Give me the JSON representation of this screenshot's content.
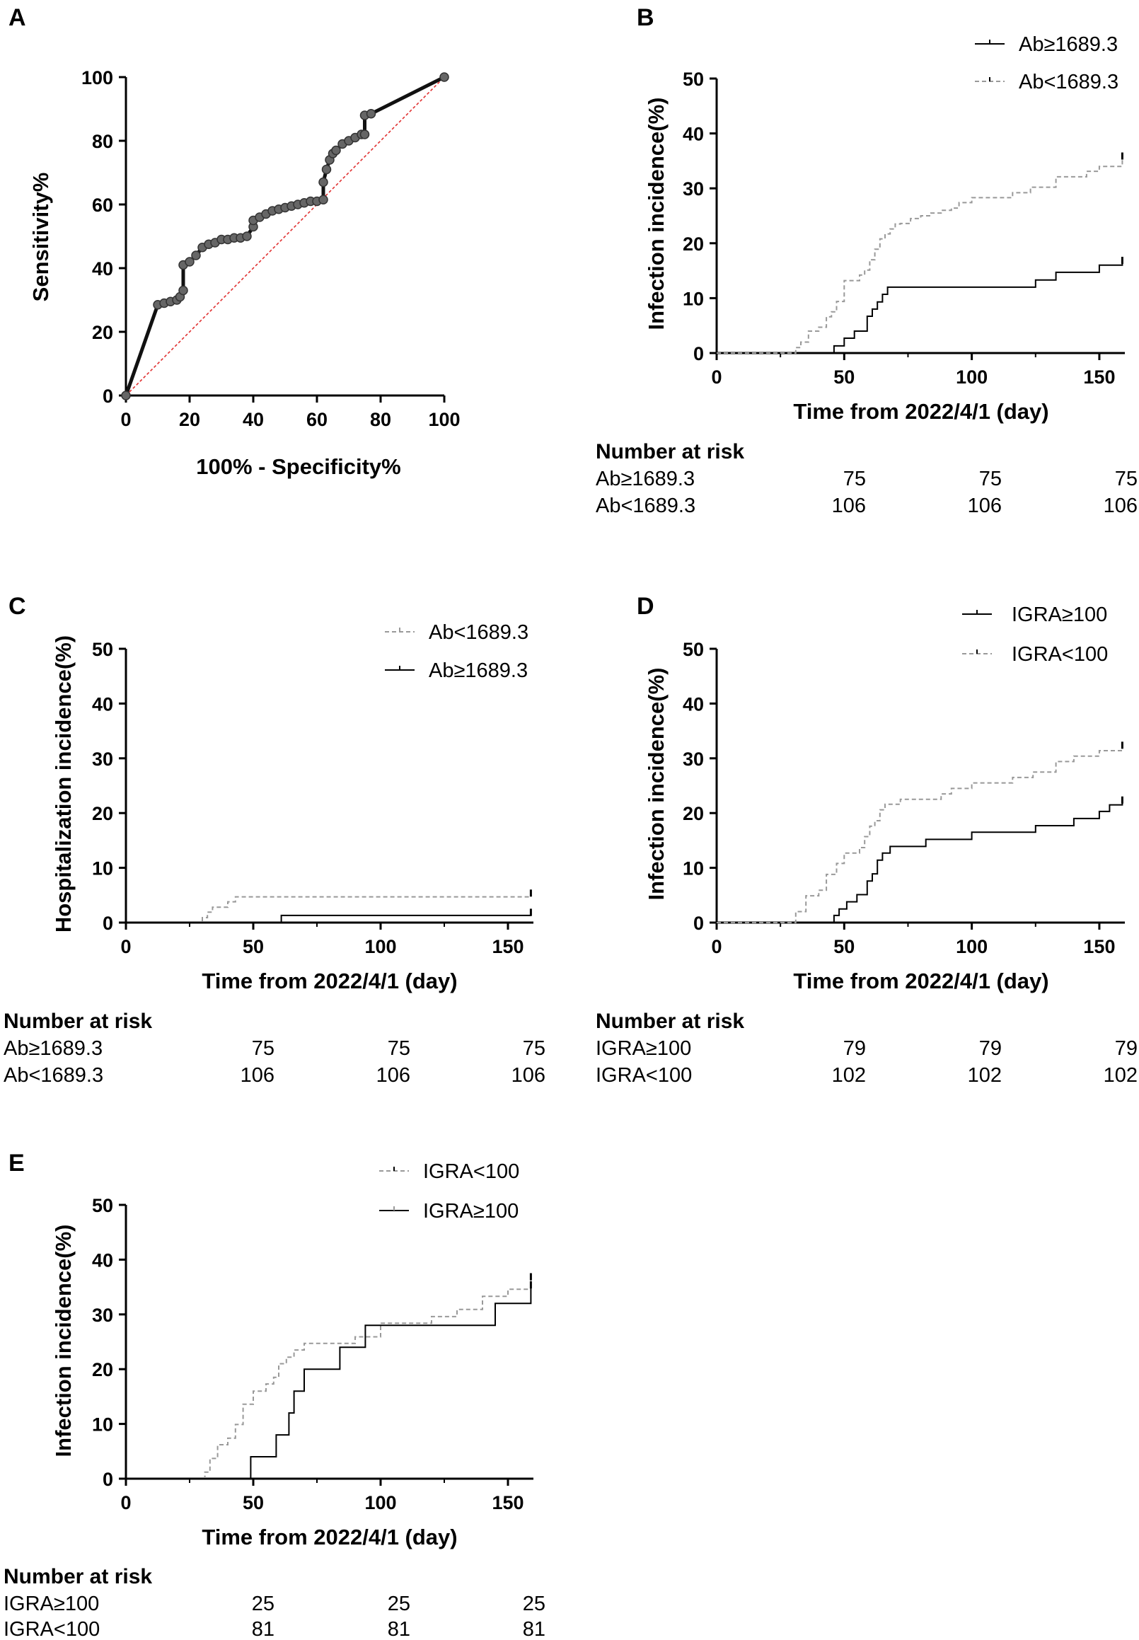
{
  "chart_data": [
    {
      "id": "A",
      "panel_label": "A",
      "type": "line",
      "title": "",
      "xlabel": "100% - Specificity%",
      "ylabel": "Sensitivity%",
      "xlim": [
        0,
        100
      ],
      "ylim": [
        0,
        100
      ],
      "xticks": [
        "0",
        "20",
        "40",
        "60",
        "80",
        "100"
      ],
      "yticks": [
        "0",
        "20",
        "40",
        "60",
        "80",
        "100"
      ],
      "series": [
        {
          "name": "ROC curve",
          "color": "#000000",
          "x": [
            0,
            10,
            12,
            14,
            16,
            17,
            18,
            18,
            20,
            22,
            24,
            26,
            28,
            30,
            32,
            34,
            36,
            38,
            40,
            40,
            42,
            44,
            46,
            48,
            50,
            52,
            54,
            56,
            58,
            60,
            62,
            62,
            63,
            64,
            65,
            66,
            68,
            70,
            72,
            74,
            75,
            75,
            77,
            100
          ],
          "y": [
            0,
            28.5,
            29,
            29.5,
            30,
            31,
            33,
            41,
            42,
            44,
            46.5,
            47.5,
            48,
            49,
            49,
            49.5,
            49.5,
            50,
            53,
            55,
            56,
            57,
            58,
            58.5,
            59,
            59.5,
            60,
            60.5,
            61,
            61,
            61.5,
            67,
            71,
            74,
            76,
            77,
            79,
            80,
            81,
            82,
            82,
            88,
            88.5,
            100
          ]
        },
        {
          "name": "Reference line",
          "color": "#e03030",
          "x": [
            0,
            100
          ],
          "y": [
            0,
            100
          ]
        }
      ]
    },
    {
      "id": "B",
      "panel_label": "B",
      "type": "line",
      "title": "",
      "xlabel": "Time from 2022/4/1 (day)",
      "ylabel": "Infection incidence(%)",
      "xlim": [
        0,
        160
      ],
      "ylim": [
        0,
        50
      ],
      "xticks": [
        "0",
        "50",
        "100",
        "150"
      ],
      "yticks": [
        "0",
        "10",
        "20",
        "30",
        "40",
        "50"
      ],
      "legend": [
        {
          "label": "Ab≥1689.3",
          "style": "solid"
        },
        {
          "label": "Ab<1689.3",
          "style": "dashed"
        }
      ],
      "series": [
        {
          "name": "Ab≥1689.3",
          "style": "solid",
          "x": [
            0,
            44,
            46,
            50,
            54,
            59,
            61,
            63,
            65,
            67,
            100,
            125,
            133,
            150,
            159
          ],
          "y": [
            0,
            0,
            1.3,
            2.7,
            4,
            6.7,
            8,
            9.3,
            10.7,
            12,
            12,
            13.3,
            14.7,
            16,
            16.5
          ]
        },
        {
          "name": "Ab<1689.3",
          "style": "dashed",
          "x": [
            0,
            29,
            31,
            33,
            36,
            40,
            43,
            45,
            47,
            50,
            56,
            58,
            60,
            62,
            64,
            66,
            68,
            70,
            72,
            76,
            80,
            84,
            88,
            92,
            95,
            100,
            110,
            116,
            123,
            133,
            145,
            150,
            159
          ],
          "y": [
            0,
            0,
            1,
            2,
            4,
            4.7,
            6.6,
            7.5,
            9.4,
            13.2,
            14.2,
            15.1,
            17,
            18.9,
            20.8,
            21.7,
            22.6,
            23.5,
            23.6,
            24.5,
            25,
            25.5,
            26,
            26.4,
            27.4,
            28.3,
            28.3,
            29.2,
            30.2,
            32.1,
            33.1,
            34,
            35.5
          ]
        }
      ],
      "risk_table": {
        "header": "Number at risk",
        "rows": [
          {
            "label": "Ab≥1689.3",
            "values": [
              "75",
              "75",
              "75"
            ]
          },
          {
            "label": "Ab<1689.3",
            "values": [
              "106",
              "106",
              "106"
            ]
          }
        ]
      }
    },
    {
      "id": "C",
      "panel_label": "C",
      "type": "line",
      "title": "",
      "xlabel": "Time from 2022/4/1 (day)",
      "ylabel": "Hospitalization incidence(%)",
      "xlim": [
        0,
        160
      ],
      "ylim": [
        0,
        50
      ],
      "xticks": [
        "0",
        "50",
        "100",
        "150"
      ],
      "yticks": [
        "0",
        "10",
        "20",
        "30",
        "40",
        "50"
      ],
      "legend": [
        {
          "label": "Ab<1689.3",
          "style": "dashed"
        },
        {
          "label": "Ab≥1689.3",
          "style": "solid"
        }
      ],
      "series": [
        {
          "name": "Ab<1689.3",
          "style": "dashed",
          "x": [
            0,
            28,
            30,
            32,
            34,
            36,
            40,
            43,
            159
          ],
          "y": [
            0,
            0,
            0.9,
            1.9,
            2.8,
            2.8,
            3.8,
            4.7,
            5
          ]
        },
        {
          "name": "Ab≥1689.3",
          "style": "solid",
          "x": [
            0,
            61,
            159
          ],
          "y": [
            0,
            1.3,
            1.5
          ]
        }
      ],
      "risk_table": {
        "header": "Number at risk",
        "rows": [
          {
            "label": "Ab≥1689.3",
            "values": [
              "75",
              "75",
              "75"
            ]
          },
          {
            "label": "Ab<1689.3",
            "values": [
              "106",
              "106",
              "106"
            ]
          }
        ]
      }
    },
    {
      "id": "D",
      "panel_label": "D",
      "type": "line",
      "title": "",
      "xlabel": "Time from 2022/4/1 (day)",
      "ylabel": "Infection incidence(%)",
      "xlim": [
        0,
        160
      ],
      "ylim": [
        0,
        50
      ],
      "xticks": [
        "0",
        "50",
        "100",
        "150"
      ],
      "yticks": [
        "0",
        "10",
        "20",
        "30",
        "40",
        "50"
      ],
      "legend": [
        {
          "label": "IGRA≥100",
          "style": "solid"
        },
        {
          "label": "IGRA<100",
          "style": "dashed"
        }
      ],
      "series": [
        {
          "name": "IGRA≥100",
          "style": "solid",
          "x": [
            0,
            44,
            46,
            48,
            51,
            55,
            59,
            61,
            63,
            65,
            68,
            70,
            82,
            100,
            125,
            133,
            140,
            145,
            150,
            154,
            159
          ],
          "y": [
            0,
            0,
            1.3,
            2.5,
            3.8,
            5.1,
            7.6,
            8.9,
            11.4,
            12.7,
            13.9,
            13.9,
            15.2,
            16.5,
            17.7,
            17.7,
            19,
            19,
            20.3,
            21.5,
            22
          ]
        },
        {
          "name": "IGRA<100",
          "style": "dashed",
          "x": [
            0,
            29,
            31,
            35,
            40,
            43,
            47,
            50,
            56,
            58,
            60,
            62,
            64,
            66,
            68,
            72,
            80,
            88,
            92,
            100,
            110,
            116,
            124,
            133,
            140,
            150,
            159
          ],
          "y": [
            0,
            0,
            2,
            4.9,
            5.9,
            8.8,
            10.8,
            12.7,
            13.7,
            15.7,
            17.6,
            18.6,
            20.6,
            21.6,
            21.6,
            22.5,
            22.5,
            23.5,
            24.5,
            25.5,
            25.5,
            26.5,
            27.5,
            29.4,
            30.4,
            31.4,
            32
          ]
        }
      ],
      "risk_table": {
        "header": "Number at risk",
        "rows": [
          {
            "label": "IGRA≥100",
            "values": [
              "79",
              "79",
              "79"
            ]
          },
          {
            "label": "IGRA<100",
            "values": [
              "102",
              "102",
              "102"
            ]
          }
        ]
      }
    },
    {
      "id": "E",
      "panel_label": "E",
      "type": "line",
      "title": "",
      "xlabel": "Time from 2022/4/1 (day)",
      "ylabel": "Infection incidence(%)",
      "xlim": [
        0,
        160
      ],
      "ylim": [
        0,
        50
      ],
      "xticks": [
        "0",
        "50",
        "100",
        "150"
      ],
      "yticks": [
        "0",
        "10",
        "20",
        "30",
        "40",
        "50"
      ],
      "legend": [
        {
          "label": "IGRA<100",
          "style": "dashed"
        },
        {
          "label": "IGRA≥100",
          "style": "solid"
        }
      ],
      "series": [
        {
          "name": "IGRA<100",
          "style": "dashed",
          "x": [
            0,
            29,
            31,
            33,
            36,
            40,
            43,
            46,
            50,
            55,
            58,
            60,
            63,
            66,
            68,
            70,
            80,
            90,
            100,
            110,
            120,
            130,
            140,
            150,
            159
          ],
          "y": [
            0,
            0,
            1.2,
            3.7,
            6.2,
            7.4,
            9.9,
            13.6,
            16,
            17.3,
            18.5,
            21,
            22.2,
            23.5,
            23.5,
            24.7,
            24.7,
            25.9,
            28.4,
            28.4,
            29.6,
            30.9,
            33.3,
            34.6,
            36.5
          ]
        },
        {
          "name": "IGRA≥100",
          "style": "solid",
          "x": [
            0,
            49,
            59,
            64,
            66,
            68,
            70,
            84,
            94,
            145,
            158,
            159
          ],
          "y": [
            0,
            4,
            8,
            12,
            16,
            16,
            20,
            24,
            28,
            32,
            32,
            35
          ]
        }
      ],
      "risk_table": {
        "header": "Number at risk",
        "rows": [
          {
            "label": "IGRA≥100",
            "values": [
              "25",
              "25",
              "25"
            ]
          },
          {
            "label": "IGRA<100",
            "values": [
              "81",
              "81",
              "81"
            ]
          }
        ]
      }
    }
  ]
}
